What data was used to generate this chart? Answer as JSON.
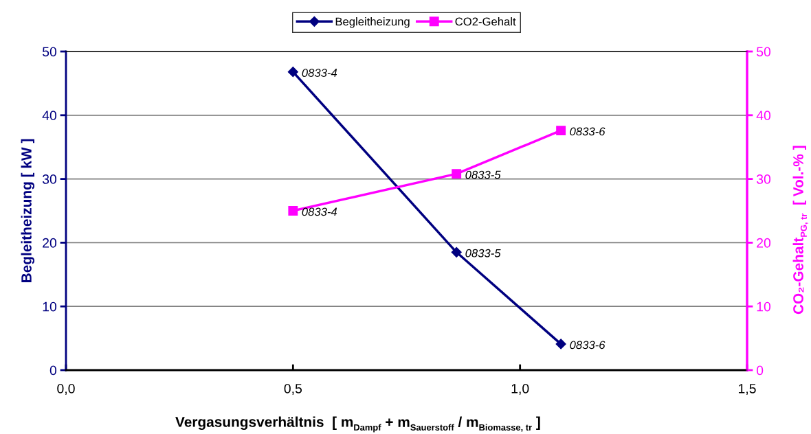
{
  "chart_data": {
    "type": "line",
    "xlabel": "Vergasungsverhältnis  [ m$_{Dampf}$ + m$_{Sauerstoff}$ / m$_{Biomasse, tr}$ ]",
    "ylabel": "Begleitheizung [ kW ]",
    "y2label": "CO₂-Gehalt$_{PG, tr}$  [ Vol.-% ]",
    "x": [
      0.5,
      0.86,
      1.09
    ],
    "series": [
      {
        "name": "Begleitheizung",
        "color": "#000080",
        "values": [
          46.8,
          18.5,
          4.1
        ],
        "marker": "diamond"
      },
      {
        "name": "CO2-Gehalt",
        "color": "#ff00ff",
        "values": [
          25.0,
          30.8,
          37.6
        ],
        "marker": "square",
        "axis": "y2"
      }
    ],
    "xlim": [
      0,
      1.5
    ],
    "xticks": [
      {
        "value": 0,
        "label": "0,0"
      },
      {
        "value": 0.5,
        "label": "0,5"
      },
      {
        "value": 1.0,
        "label": "1,0"
      },
      {
        "value": 1.5,
        "label": "1,5"
      }
    ],
    "ylim": [
      0,
      50
    ],
    "yticks": [
      0,
      10,
      20,
      30,
      40,
      50
    ],
    "y2lim": [
      0,
      50
    ],
    "y2ticks": [
      0,
      10,
      20,
      30,
      40,
      50
    ],
    "grid": "y",
    "legend": "top",
    "line_style": "solid",
    "annotations": [
      {
        "text": "0833-4",
        "x": 0.5,
        "y": 46.8
      },
      {
        "text": "0833-5",
        "x": 0.86,
        "y": 18.5
      },
      {
        "text": "0833-6",
        "x": 1.09,
        "y": 4.1
      },
      {
        "text": "0833-4",
        "x": 0.5,
        "y": 25.0
      },
      {
        "text": "0833-5",
        "x": 0.86,
        "y": 30.8
      },
      {
        "text": "0833-6",
        "x": 1.09,
        "y": 37.6
      }
    ]
  }
}
